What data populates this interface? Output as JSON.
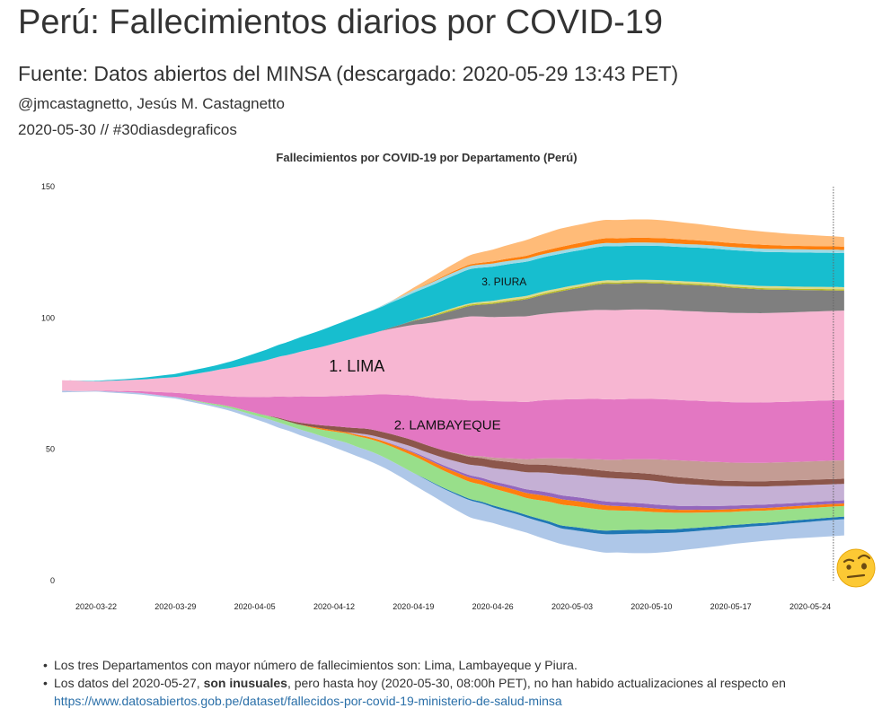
{
  "header": {
    "title": "Perú: Fallecimientos diarios por COVID-19",
    "subtitle": "Fuente: Datos abiertos del MINSA (descargado: 2020-05-29 13:43 PET)",
    "author": "@jmcastagnetto, Jesús M. Castagnetto",
    "date_tag": "2020-05-30 // #30diasdegraficos"
  },
  "chart_data": {
    "type": "area",
    "subtype": "streamgraph",
    "title": "Fallecimientos por COVID-19 por Departamento (Perú)",
    "xlabel": "",
    "ylabel": "",
    "x_start": "2020-03-19",
    "x_end": "2020-05-27",
    "x_ticks": [
      "2020-03-22",
      "2020-03-29",
      "2020-04-05",
      "2020-04-12",
      "2020-04-19",
      "2020-04-26",
      "2020-05-03",
      "2020-05-10",
      "2020-05-17",
      "2020-05-24"
    ],
    "y_ticks": [
      0,
      50,
      100,
      150
    ],
    "ylim": [
      0,
      150
    ],
    "grid": false,
    "legend": "none",
    "annotations": [
      {
        "text": "1. LIMA",
        "series": "Lima"
      },
      {
        "text": "2. LAMBAYEQUE",
        "series": "Lambayeque"
      },
      {
        "text": "3. PIURA",
        "series": "Piura"
      }
    ],
    "series": [
      {
        "color": "#aec7e8",
        "values": [
          0.6,
          0.4,
          0.3,
          0.3,
          0.4,
          0.5,
          0.6,
          0.6,
          0.6,
          0.6,
          0.6,
          0.6,
          0.6,
          0.6,
          0.8,
          1,
          1.2,
          1.4,
          1.6,
          2,
          2,
          2.2,
          2.4,
          2.5,
          3,
          3.5,
          3.6,
          3.8,
          4,
          4,
          4.2,
          4.5,
          4.8,
          5,
          5.5,
          6,
          6.5,
          6.5,
          6,
          6,
          6,
          5.8,
          6,
          6.2,
          6,
          6.3,
          6.5,
          6.8,
          7,
          7,
          7.3,
          7.5,
          7.5,
          7.3,
          7,
          6.8,
          6.7,
          6.5,
          6.3,
          6.2,
          6,
          5.9,
          5.8,
          5.8,
          5.8,
          5.9,
          6,
          6.1,
          6.2,
          6.2
        ]
      },
      {
        "color": "#1f77b4",
        "values": [
          0,
          0,
          0,
          0,
          0,
          0,
          0,
          0,
          0,
          0,
          0,
          0,
          0,
          0,
          0,
          0,
          0,
          0,
          0,
          0,
          0,
          0,
          0,
          0,
          0,
          0,
          0,
          0,
          0,
          0,
          0,
          0,
          0.2,
          0.3,
          0.4,
          0.5,
          0.5,
          0.6,
          0.7,
          0.8,
          0.8,
          0.9,
          1,
          1,
          1.1,
          1.2,
          1.3,
          1.3,
          1.4,
          1.5,
          1.5,
          1.5,
          1.4,
          1.4,
          1.3,
          1.3,
          1.2,
          1.2,
          1.2,
          1.1,
          1.1,
          1.1,
          1,
          1,
          1,
          1,
          1,
          1,
          1,
          1
        ]
      },
      {
        "color": "#98df8a",
        "values": [
          0,
          0,
          0,
          0,
          0,
          0,
          0,
          0,
          0,
          0,
          0,
          0.2,
          0.3,
          0.4,
          0.6,
          0.7,
          0.8,
          1,
          1.2,
          1.4,
          1.5,
          1.8,
          2,
          2.5,
          3,
          3.5,
          4,
          4.5,
          5,
          5.5,
          6,
          6.5,
          6.5,
          6.5,
          6.5,
          6.5,
          6.5,
          6.5,
          6.5,
          6.5,
          6.5,
          6.5,
          7,
          7.5,
          8,
          8,
          8,
          8,
          7.8,
          7.5,
          7.3,
          7,
          6.8,
          6.5,
          6.3,
          6,
          5.8,
          5.5,
          5.3,
          5,
          5,
          4.8,
          4.7,
          4.6,
          4.5,
          4.4,
          4.3,
          4.2,
          4.1,
          4
        ]
      },
      {
        "color": "#ff7f0e",
        "values": [
          0,
          0,
          0,
          0,
          0,
          0,
          0,
          0,
          0,
          0,
          0,
          0,
          0,
          0,
          0,
          0,
          0,
          0,
          0,
          0,
          0,
          0,
          0.3,
          0.5,
          0.5,
          0.5,
          0.6,
          0.7,
          0.8,
          0.9,
          1,
          1.1,
          1.2,
          1.3,
          1.4,
          1.5,
          1.6,
          1.6,
          1.6,
          1.7,
          1.8,
          1.9,
          2,
          2,
          2,
          2,
          2,
          1.9,
          1.8,
          1.7,
          1.6,
          1.5,
          1.4,
          1.3,
          1.2,
          1.1,
          1.1,
          1,
          1,
          1,
          1,
          1,
          1,
          1,
          1,
          1,
          1,
          1,
          1,
          1
        ]
      },
      {
        "color": "#9467bd",
        "values": [
          0,
          0,
          0,
          0,
          0,
          0,
          0,
          0,
          0,
          0,
          0,
          0,
          0,
          0,
          0,
          0,
          0,
          0,
          0,
          0,
          0,
          0,
          0,
          0,
          0,
          0,
          0,
          0,
          0,
          0.2,
          0.3,
          0.4,
          0.5,
          0.6,
          0.7,
          0.8,
          0.9,
          1,
          1.1,
          1.2,
          1.3,
          1.4,
          1.5,
          1.5,
          1.5,
          1.5,
          1.5,
          1.5,
          1.5,
          1.5,
          1.5,
          1.5,
          1.5,
          1.5,
          1.5,
          1.5,
          1.5,
          1.5,
          1.4,
          1.4,
          1.3,
          1.3,
          1.3,
          1.3,
          1.2,
          1.2,
          1.2,
          1.2,
          1.2,
          1.2
        ]
      },
      {
        "color": "#c5b0d5",
        "values": [
          0,
          0,
          0,
          0,
          0,
          0,
          0,
          0,
          0,
          0,
          0,
          0,
          0,
          0,
          0,
          0,
          0,
          0,
          0,
          0,
          0,
          0,
          0,
          0,
          0,
          0,
          0.5,
          0.8,
          1,
          1.2,
          1.5,
          1.8,
          2,
          2.5,
          3,
          3.5,
          4,
          4.5,
          5,
          5.5,
          6,
          6.5,
          7,
          7.5,
          8,
          8.3,
          8.5,
          8.8,
          9,
          9,
          9,
          9,
          9,
          8.8,
          8.5,
          8.3,
          8,
          7.8,
          7.6,
          7.4,
          7.2,
          7,
          6.9,
          6.8,
          6.7,
          6.6,
          6.5,
          6.4,
          6.3,
          6.2
        ]
      },
      {
        "color": "#8c564b",
        "values": [
          0,
          0,
          0,
          0,
          0,
          0,
          0,
          0,
          0,
          0,
          0,
          0,
          0,
          0,
          0,
          0,
          0,
          0,
          0,
          0.3,
          0.5,
          0.8,
          1,
          1.2,
          1.5,
          1.8,
          2,
          2.2,
          2.3,
          2.4,
          2.5,
          2.6,
          2.7,
          2.8,
          2.9,
          3,
          3,
          3,
          3,
          3,
          3,
          3,
          3,
          3,
          3,
          2.9,
          2.8,
          2.7,
          2.6,
          2.5,
          2.5,
          2.5,
          2.5,
          2.5,
          2.5,
          2.4,
          2.3,
          2.2,
          2.1,
          2,
          2,
          2,
          2,
          2,
          2,
          2,
          2,
          2,
          2,
          2
        ]
      },
      {
        "color": "#c49c94",
        "values": [
          0,
          0,
          0,
          0,
          0,
          0,
          0,
          0,
          0,
          0,
          0,
          0,
          0,
          0,
          0,
          0,
          0,
          0,
          0,
          0,
          0,
          0,
          0,
          0,
          0,
          0,
          0,
          0,
          0,
          0,
          0,
          0,
          0,
          0,
          0,
          0.3,
          0.5,
          0.7,
          1,
          1.3,
          1.6,
          2,
          2.3,
          2.6,
          3,
          3.3,
          3.6,
          4,
          4.3,
          4.6,
          5,
          5.3,
          5.6,
          6,
          6.3,
          6.5,
          6.7,
          6.8,
          7,
          7,
          7,
          7,
          7,
          7,
          7,
          7,
          7,
          7,
          7,
          7
        ]
      },
      {
        "color": "#e377c2",
        "values": [
          0,
          0,
          0,
          0,
          0.2,
          0.3,
          0.5,
          0.7,
          1,
          1.3,
          1.6,
          2,
          2.5,
          3,
          3.5,
          4,
          5,
          6,
          7,
          8,
          9,
          10,
          10.5,
          11,
          11.5,
          12,
          12.5,
          13,
          14,
          15,
          16,
          17,
          18,
          19,
          20,
          20.5,
          21,
          21.2,
          21.5,
          21.6,
          21.7,
          21.8,
          22,
          22.2,
          22.4,
          22.6,
          22.8,
          23,
          23,
          23,
          23,
          23,
          23,
          23,
          23,
          23,
          23,
          23,
          23,
          23,
          23,
          23,
          23,
          23,
          23,
          23,
          23,
          23,
          23,
          23
        ]
      },
      {
        "color": "#f7b6d2",
        "values": [
          4,
          4,
          3.8,
          3.6,
          3.8,
          4,
          4.2,
          4.5,
          5,
          5.5,
          6,
          7,
          8,
          9,
          10,
          11,
          12,
          13,
          14,
          15,
          16,
          17,
          18,
          19,
          20,
          21,
          22,
          23,
          24,
          25,
          26,
          27,
          28,
          29,
          30,
          31,
          32,
          32,
          32,
          32.2,
          32.4,
          32.6,
          32.8,
          33,
          33.2,
          33.4,
          33.6,
          33.8,
          34,
          34,
          34,
          34,
          34,
          34,
          34,
          34,
          34,
          34,
          34,
          34,
          34,
          34,
          34,
          34,
          34,
          34,
          34,
          34,
          34,
          34
        ]
      },
      {
        "color": "#7f7f7f",
        "values": [
          0,
          0,
          0,
          0,
          0,
          0,
          0,
          0,
          0,
          0,
          0,
          0,
          0,
          0,
          0,
          0,
          0,
          0,
          0,
          0,
          0,
          0,
          0,
          0,
          0,
          0,
          0,
          0,
          0,
          0.5,
          1,
          1.5,
          2,
          2.5,
          3,
          3.5,
          4,
          4.5,
          5,
          5.5,
          6,
          6.5,
          7,
          7.5,
          8,
          8.5,
          9,
          9.5,
          10,
          10,
          10,
          10,
          10,
          10,
          10,
          10,
          10,
          10,
          9.8,
          9.6,
          9.4,
          9.2,
          9,
          8.8,
          8.6,
          8.4,
          8.2,
          8,
          7.8,
          7.6
        ]
      },
      {
        "color": "#bcbd22",
        "values": [
          0,
          0,
          0,
          0,
          0,
          0,
          0,
          0,
          0,
          0,
          0,
          0,
          0,
          0,
          0,
          0,
          0,
          0,
          0,
          0,
          0,
          0,
          0,
          0,
          0,
          0,
          0,
          0,
          0,
          0,
          0,
          0.2,
          0.3,
          0.4,
          0.5,
          0.5,
          0.5,
          0.5,
          0.5,
          0.5,
          0.5,
          0.5,
          0.5,
          0.5,
          0.5,
          0.5,
          0.5,
          0.5,
          0.5,
          0.5,
          0.5,
          0.5,
          0.5,
          0.5,
          0.5,
          0.5,
          0.5,
          0.5,
          0.5,
          0.5,
          0.5,
          0.5,
          0.5,
          0.5,
          0.5,
          0.5,
          0.5,
          0.5,
          0.5,
          0.5
        ]
      },
      {
        "color": "#dbdb8d",
        "values": [
          0,
          0,
          0,
          0,
          0,
          0,
          0,
          0,
          0,
          0,
          0,
          0,
          0,
          0,
          0,
          0,
          0,
          0,
          0,
          0,
          0,
          0,
          0,
          0,
          0,
          0,
          0,
          0,
          0,
          0,
          0,
          0,
          0.2,
          0.3,
          0.4,
          0.5,
          0.5,
          0.6,
          0.7,
          0.8,
          0.8,
          0.8,
          0.8,
          0.8,
          0.8,
          0.8,
          0.8,
          0.8,
          0.8,
          0.8,
          0.8,
          0.8,
          0.8,
          0.8,
          0.8,
          0.8,
          0.8,
          0.8,
          0.8,
          0.8,
          0.8,
          0.8,
          0.8,
          0.8,
          0.8,
          0.8,
          0.8,
          0.8,
          0.8,
          0.8
        ]
      },
      {
        "color": "#17becf",
        "values": [
          0,
          0,
          0.1,
          0.2,
          0.3,
          0.4,
          0.5,
          0.6,
          0.8,
          1,
          1.2,
          1.4,
          1.6,
          1.8,
          2,
          2.5,
          3,
          3.5,
          4,
          4.5,
          5,
          5.5,
          6,
          6.5,
          7,
          7.5,
          8,
          8.5,
          9,
          9.5,
          10,
          10.5,
          11,
          11.5,
          12,
          12.5,
          13,
          13,
          13,
          13,
          13,
          13,
          13,
          13,
          13,
          13,
          13,
          13,
          13,
          13,
          13,
          13,
          13,
          13,
          13,
          13,
          13,
          13,
          13,
          13,
          13,
          13,
          13,
          13,
          13,
          13,
          13,
          13,
          13,
          13
        ]
      },
      {
        "color": "#9edae5",
        "values": [
          0,
          0,
          0,
          0,
          0,
          0,
          0,
          0,
          0,
          0,
          0,
          0,
          0,
          0,
          0,
          0,
          0,
          0,
          0,
          0,
          0,
          0,
          0,
          0,
          0,
          0,
          0,
          0,
          0.3,
          0.5,
          0.7,
          0.9,
          1,
          1.1,
          1.2,
          1.2,
          1.2,
          1.2,
          1.2,
          1.2,
          1.2,
          1.2,
          1.2,
          1.2,
          1.2,
          1.2,
          1.2,
          1.2,
          1.2,
          1.2,
          1.2,
          1.2,
          1.2,
          1.2,
          1.2,
          1.2,
          1.2,
          1.2,
          1.2,
          1.2,
          1.2,
          1.2,
          1.2,
          1.2,
          1.2,
          1.2,
          1.2,
          1.2,
          1.2,
          1.2
        ]
      },
      {
        "color": "#ff7f0e",
        "values": [
          0,
          0,
          0,
          0,
          0,
          0,
          0,
          0,
          0,
          0,
          0,
          0,
          0,
          0,
          0,
          0,
          0,
          0,
          0,
          0,
          0,
          0,
          0,
          0,
          0,
          0,
          0,
          0,
          0,
          0,
          0,
          0,
          0.2,
          0.3,
          0.4,
          0.5,
          0.6,
          0.7,
          0.8,
          0.9,
          1,
          1.1,
          1.2,
          1.3,
          1.4,
          1.5,
          1.6,
          1.7,
          1.8,
          1.8,
          1.8,
          1.8,
          1.8,
          1.8,
          1.8,
          1.7,
          1.6,
          1.5,
          1.5,
          1.5,
          1.5,
          1.5,
          1.5,
          1.4,
          1.3,
          1.3,
          1.3,
          1.3,
          1.3,
          1.3
        ]
      },
      {
        "color": "#ffbb78",
        "values": [
          0,
          0,
          0,
          0,
          0,
          0,
          0,
          0,
          0,
          0,
          0,
          0,
          0,
          0,
          0,
          0,
          0,
          0,
          0,
          0,
          0,
          0,
          0,
          0,
          0,
          0,
          0,
          0,
          0,
          0,
          0.5,
          1,
          1.5,
          2,
          2.5,
          3,
          3.5,
          4,
          4.5,
          5,
          5.5,
          6,
          6.3,
          6.6,
          7,
          7,
          7,
          7,
          7,
          7,
          7,
          7,
          7,
          6.8,
          6.6,
          6.4,
          6.2,
          6,
          5.8,
          5.6,
          5.4,
          5.2,
          5,
          4.8,
          4.6,
          4.4,
          4.2,
          4,
          3.8,
          3.6
        ]
      }
    ]
  },
  "notes": {
    "item1": "Los tres Departamentos con mayor número de fallecimientos son: Lima, Lambayeque y Piura.",
    "item2_pre": "Los datos del 2020-05-27, ",
    "item2_bold": "son inusuales",
    "item2_post": ", pero hasta hoy (2020-05-30, 08:00h PET), no han habido actualizaciones al respecto en",
    "link": "https://www.datosabiertos.gob.pe/dataset/fallecidos-por-covid-19-ministerio-de-salud-minsa"
  },
  "icons": {
    "emoji": "face-with-raised-eyebrow-icon"
  }
}
